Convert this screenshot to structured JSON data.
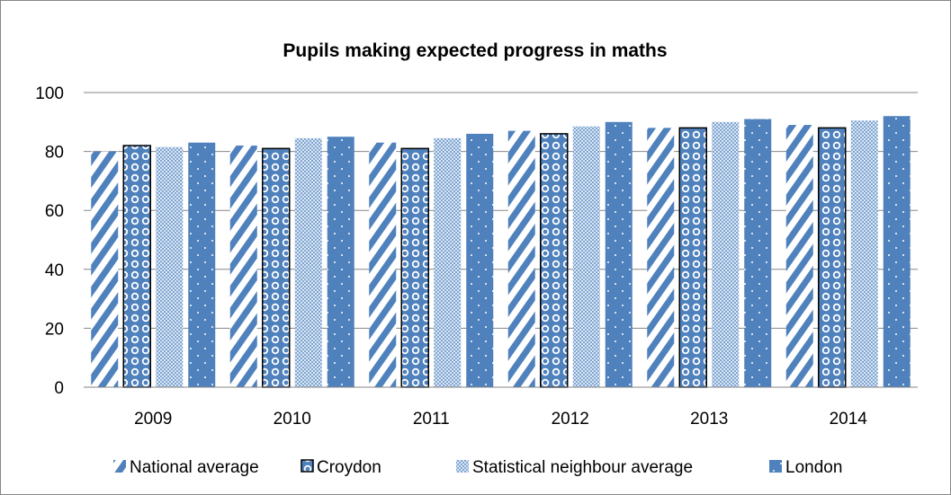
{
  "chart_data": {
    "type": "bar",
    "title": "Pupils making expected progress in maths",
    "xlabel": "",
    "ylabel": "",
    "categories": [
      "2009",
      "2010",
      "2011",
      "2012",
      "2013",
      "2014"
    ],
    "ylim": [
      0,
      100
    ],
    "yticks": [
      0,
      20,
      40,
      60,
      80,
      100
    ],
    "grid": true,
    "legend_position": "bottom",
    "series": [
      {
        "name": "National average",
        "values": [
          80,
          82,
          83,
          87,
          88,
          89
        ],
        "pattern": "diagonal-stripes",
        "color": "#4f81bd"
      },
      {
        "name": "Croydon",
        "values": [
          82,
          81,
          81,
          86,
          88,
          88
        ],
        "pattern": "circles-outlined",
        "color": "#4f81bd"
      },
      {
        "name": "Statistical neighbour average",
        "values": [
          81.5,
          84.5,
          84.5,
          88.5,
          90,
          90.5
        ],
        "pattern": "checker",
        "color": "#95b3d7"
      },
      {
        "name": "London",
        "values": [
          83,
          85,
          86,
          90,
          91,
          92
        ],
        "pattern": "dotted-solid",
        "color": "#4f81bd"
      }
    ]
  }
}
